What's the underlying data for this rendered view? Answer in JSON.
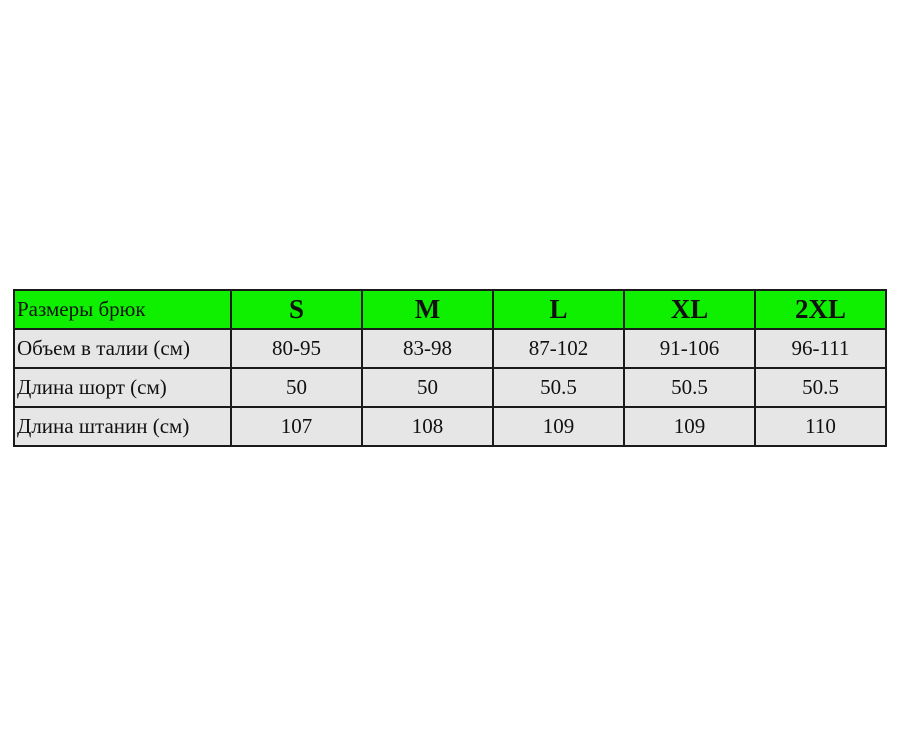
{
  "table": {
    "header": {
      "label": "Размеры брюк",
      "sizes": [
        "S",
        "M",
        "L",
        "XL",
        "2XL"
      ]
    },
    "rows": [
      {
        "label": "Объем в талии (см)",
        "values": [
          "80-95",
          "83-98",
          "87-102",
          "91-106",
          "96-111"
        ]
      },
      {
        "label": "Длина шорт (см)",
        "values": [
          "50",
          "50",
          "50.5",
          "50.5",
          "50.5"
        ]
      },
      {
        "label": "Длина штанин (см)",
        "values": [
          "107",
          "108",
          "109",
          "109",
          "110"
        ]
      }
    ]
  },
  "colors": {
    "header_bg": "#0ff000",
    "cell_bg": "#e6e6e6",
    "border": "#1a1a1a"
  }
}
